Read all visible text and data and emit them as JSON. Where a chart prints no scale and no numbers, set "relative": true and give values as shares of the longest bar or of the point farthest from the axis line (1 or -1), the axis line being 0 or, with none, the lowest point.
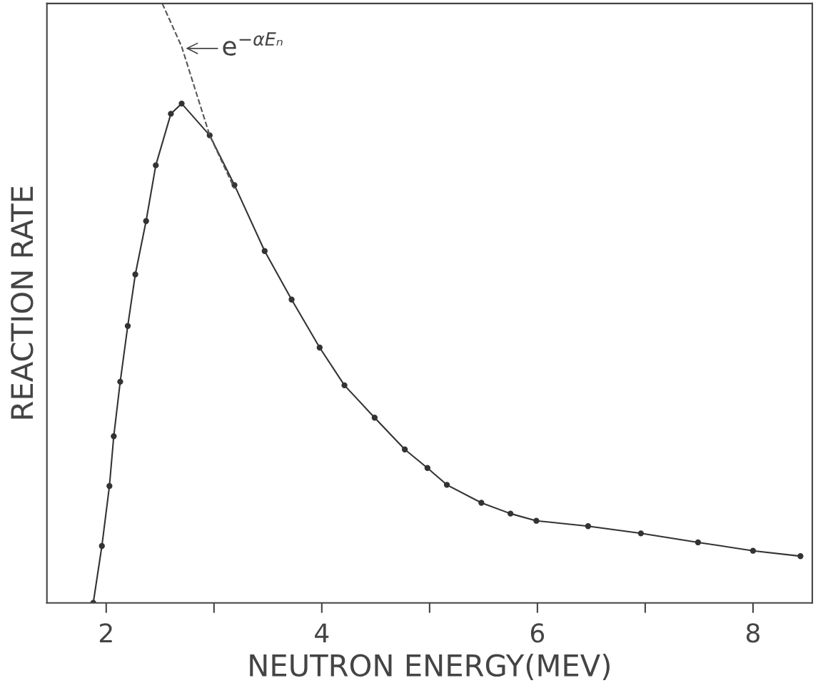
{
  "chart_data": {
    "type": "line",
    "relative": true,
    "xlabel": "NEUTRON ENERGY(MEV)",
    "ylabel": "REACTION RATE",
    "xlim": [
      1.45,
      8.55
    ],
    "xticks": [
      2,
      {
        "value": 3,
        "label": null
      },
      4,
      {
        "value": 5,
        "label": null
      },
      6,
      {
        "value": 7,
        "label": null
      },
      8
    ],
    "series": [
      {
        "color": "#333333",
        "marker": "circle",
        "line_style": "solid",
        "x": [
          1.88,
          1.96,
          2.03,
          2.07,
          2.13,
          2.2,
          2.27,
          2.37,
          2.46,
          2.6,
          2.7,
          2.96,
          3.19,
          3.47,
          3.72,
          3.98,
          4.21,
          4.49,
          4.77,
          4.98,
          5.16,
          5.48,
          5.75,
          5.99,
          6.47,
          6.96,
          7.49,
          8.0,
          8.44
        ],
        "values": [
          0,
          0.095,
          0.195,
          0.278,
          0.369,
          0.462,
          0.548,
          0.637,
          0.73,
          0.816,
          0.833,
          0.78,
          0.697,
          0.587,
          0.506,
          0.426,
          0.363,
          0.309,
          0.256,
          0.225,
          0.197,
          0.167,
          0.149,
          0.137,
          0.128,
          0.116,
          0.101,
          0.087,
          0.078
        ]
      },
      {
        "color": "#555555",
        "marker": "none",
        "line_style": "dashed",
        "x": [
          2.52,
          2.7,
          2.96,
          3.19
        ],
        "values": [
          1.0,
          0.928,
          0.78,
          0.691
        ]
      }
    ],
    "annotations": [
      {
        "text": "e$^{−αEₙ}$",
        "x": 2.72,
        "y": 0.925
      }
    ],
    "grid": false,
    "legend": false
  }
}
